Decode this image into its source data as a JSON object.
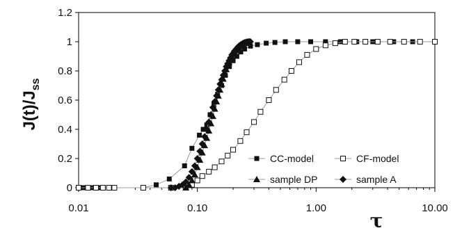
{
  "chart_data": {
    "type": "scatter",
    "title": "",
    "ylabel": "J(t)/J",
    "ylabel_sub": "ss",
    "xlabel": "τ",
    "x_scale": "log",
    "xlim": [
      0.01,
      10
    ],
    "ylim": [
      0,
      1.2
    ],
    "x_ticks": [
      "0.01",
      "0.10",
      "1.00",
      "10.00"
    ],
    "y_ticks": [
      "0",
      "0.2",
      "0.4",
      "0.6",
      "0.8",
      "1",
      "1.2"
    ],
    "grid": false,
    "legend_position": "lower-right",
    "series": [
      {
        "name": "CC-model",
        "marker": "square-filled",
        "x": [
          0.01,
          0.011,
          0.012,
          0.013,
          0.014,
          0.015,
          0.016,
          0.018,
          0.02,
          0.035,
          0.045,
          0.058,
          0.078,
          0.09,
          0.104,
          0.112,
          0.12,
          0.128,
          0.138,
          0.148,
          0.16,
          0.172,
          0.186,
          0.2,
          0.215,
          0.232,
          0.25,
          0.28,
          0.32,
          0.38,
          0.45,
          0.55,
          0.7,
          0.9,
          1.2,
          1.6,
          2.2,
          3.0,
          4.5,
          6.5,
          10.0
        ],
        "y": [
          0.0,
          0.0,
          0.0,
          0.0,
          0.0,
          0.0,
          0.0,
          0.0,
          0.0,
          0.0,
          0.02,
          0.06,
          0.15,
          0.27,
          0.36,
          0.4,
          0.43,
          0.5,
          0.57,
          0.64,
          0.7,
          0.77,
          0.83,
          0.87,
          0.9,
          0.93,
          0.95,
          0.97,
          0.98,
          0.99,
          0.995,
          1.0,
          1.0,
          1.0,
          1.0,
          1.0,
          1.0,
          1.0,
          1.0,
          1.0,
          1.0
        ]
      },
      {
        "name": "CF-model",
        "marker": "square-open",
        "x": [
          0.01,
          0.012,
          0.014,
          0.016,
          0.018,
          0.02,
          0.035,
          0.06,
          0.08,
          0.09,
          0.1,
          0.11,
          0.125,
          0.14,
          0.16,
          0.18,
          0.2,
          0.23,
          0.26,
          0.3,
          0.34,
          0.4,
          0.46,
          0.54,
          0.62,
          0.72,
          0.84,
          1.0,
          1.2,
          1.45,
          1.75,
          2.1,
          2.6,
          3.3,
          4.2,
          5.5,
          7.5,
          10.0
        ],
        "y": [
          0.0,
          0.0,
          0.0,
          0.0,
          0.0,
          0.0,
          0.0,
          0.0,
          0.0,
          0.02,
          0.05,
          0.08,
          0.11,
          0.14,
          0.18,
          0.22,
          0.26,
          0.32,
          0.38,
          0.45,
          0.52,
          0.6,
          0.67,
          0.74,
          0.8,
          0.86,
          0.91,
          0.95,
          0.975,
          0.99,
          1.0,
          1.0,
          1.0,
          1.0,
          1.0,
          1.0,
          1.0,
          1.0
        ]
      },
      {
        "name": "sample DP",
        "marker": "triangle-filled",
        "x": [
          0.08,
          0.085,
          0.09,
          0.095,
          0.1,
          0.105,
          0.11,
          0.115,
          0.12,
          0.125,
          0.13,
          0.135,
          0.14,
          0.145,
          0.15,
          0.155,
          0.16,
          0.165,
          0.17,
          0.175,
          0.18,
          0.185,
          0.19,
          0.195,
          0.2,
          0.205,
          0.21,
          0.215,
          0.22,
          0.225,
          0.23,
          0.235,
          0.24,
          0.245,
          0.25,
          0.255,
          0.26,
          0.265,
          0.27
        ],
        "y": [
          0.0,
          0.02,
          0.05,
          0.09,
          0.14,
          0.19,
          0.24,
          0.29,
          0.34,
          0.39,
          0.44,
          0.49,
          0.54,
          0.59,
          0.63,
          0.67,
          0.71,
          0.745,
          0.78,
          0.81,
          0.835,
          0.86,
          0.88,
          0.9,
          0.915,
          0.93,
          0.94,
          0.95,
          0.96,
          0.967,
          0.973,
          0.978,
          0.983,
          0.987,
          0.99,
          0.993,
          0.996,
          0.998,
          1.0
        ]
      },
      {
        "name": "sample A",
        "marker": "diamond-filled",
        "x": [
          0.06,
          0.065,
          0.07,
          0.075,
          0.08,
          0.085,
          0.09,
          0.095,
          0.1,
          0.105,
          0.11,
          0.115,
          0.12,
          0.125,
          0.13,
          0.135,
          0.14,
          0.145,
          0.15,
          0.155,
          0.16,
          0.165,
          0.17,
          0.175,
          0.18,
          0.185,
          0.19,
          0.195,
          0.2,
          0.205,
          0.21,
          0.215,
          0.22,
          0.225,
          0.23,
          0.235,
          0.24,
          0.245,
          0.25,
          0.255,
          0.26,
          0.265,
          0.27,
          0.275,
          0.28
        ],
        "y": [
          0.0,
          0.0,
          0.01,
          0.02,
          0.04,
          0.07,
          0.11,
          0.15,
          0.2,
          0.25,
          0.3,
          0.35,
          0.4,
          0.45,
          0.5,
          0.55,
          0.59,
          0.63,
          0.67,
          0.71,
          0.74,
          0.77,
          0.8,
          0.83,
          0.85,
          0.87,
          0.89,
          0.91,
          0.92,
          0.935,
          0.945,
          0.955,
          0.965,
          0.972,
          0.978,
          0.983,
          0.987,
          0.991,
          0.994,
          0.996,
          0.998,
          0.999,
          1.0,
          1.0,
          1.0
        ]
      }
    ]
  }
}
